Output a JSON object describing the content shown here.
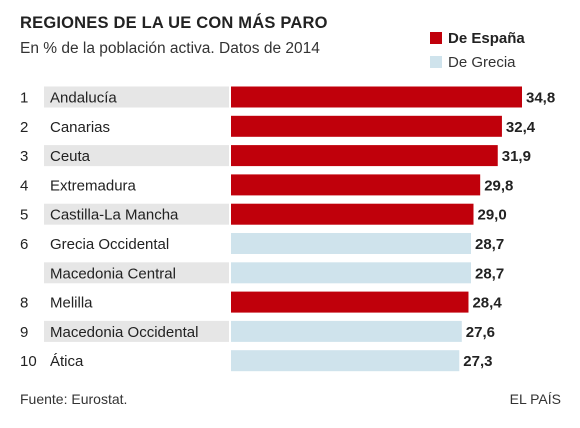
{
  "header": {
    "title": "REGIONES DE LA UE CON MÁS PARO",
    "subtitle": "En % de la población activa. Datos de 2014"
  },
  "legend": {
    "items": [
      {
        "label": "De España",
        "color": "#c0000b",
        "bold": true
      },
      {
        "label": "De Grecia",
        "color": "#cfe3ec",
        "bold": false
      }
    ]
  },
  "colors": {
    "spain": "#c0000b",
    "greece": "#cfe3ec",
    "label_band": "#e6e6e6"
  },
  "chart_data": {
    "type": "bar",
    "orientation": "horizontal",
    "title": "REGIONES DE LA UE CON MÁS PARO",
    "subtitle": "En % de la población activa. Datos de 2014",
    "xlim": [
      0,
      34.8
    ],
    "rows": [
      {
        "rank": "1",
        "region": "Andalucía",
        "value": 34.8,
        "label": "34,8",
        "country": "spain"
      },
      {
        "rank": "2",
        "region": "Canarias",
        "value": 32.4,
        "label": "32,4",
        "country": "spain"
      },
      {
        "rank": "3",
        "region": "Ceuta",
        "value": 31.9,
        "label": "31,9",
        "country": "spain"
      },
      {
        "rank": "4",
        "region": "Extremadura",
        "value": 29.8,
        "label": "29,8",
        "country": "spain"
      },
      {
        "rank": "5",
        "region": "Castilla-La Mancha",
        "value": 29.0,
        "label": "29,0",
        "country": "spain"
      },
      {
        "rank": "6",
        "region": "Grecia Occidental",
        "value": 28.7,
        "label": "28,7",
        "country": "greece"
      },
      {
        "rank": "",
        "region": "Macedonia Central",
        "value": 28.7,
        "label": "28,7",
        "country": "greece"
      },
      {
        "rank": "8",
        "region": "Melilla",
        "value": 28.4,
        "label": "28,4",
        "country": "spain"
      },
      {
        "rank": "9",
        "region": "Macedonia Occidental",
        "value": 27.6,
        "label": "27,6",
        "country": "greece"
      },
      {
        "rank": "10",
        "region": "Ática",
        "value": 27.3,
        "label": "27,3",
        "country": "greece"
      }
    ]
  },
  "footer": {
    "source": "Fuente: Eurostat.",
    "credit": "EL PAÍS"
  }
}
